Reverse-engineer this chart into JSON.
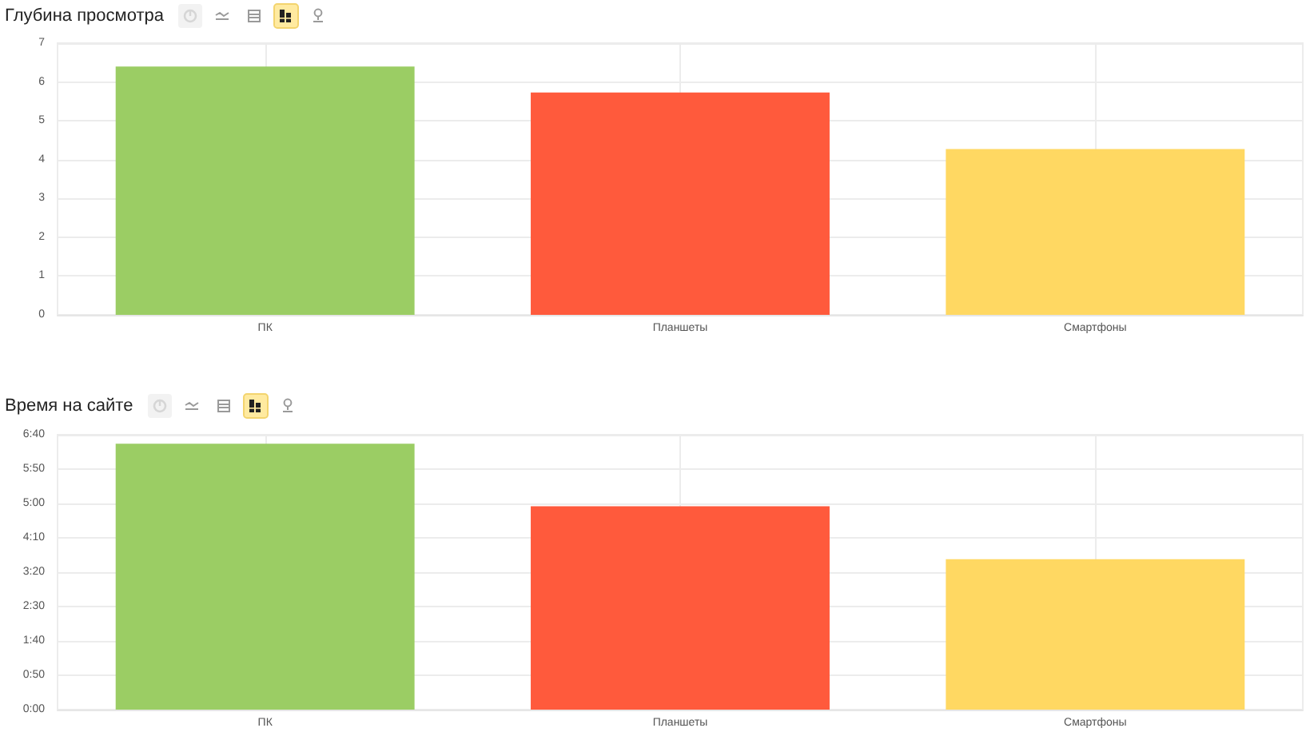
{
  "chart_data": [
    {
      "type": "bar",
      "title": "Глубина просмотра",
      "categories": [
        "ПК",
        "Планшеты",
        "Смартфоны"
      ],
      "values": [
        6.4,
        5.73,
        4.27
      ],
      "colors": [
        "#9bcd64",
        "#ff5a3c",
        "#ffd862"
      ],
      "ylim": [
        0,
        7
      ],
      "yticks": [
        0,
        1,
        2,
        3,
        4,
        5,
        6,
        7
      ],
      "grid": true
    },
    {
      "type": "bar",
      "title": "Время на сайте",
      "categories": [
        "ПК",
        "Планшеты",
        "Смартфоны"
      ],
      "values": [
        387,
        296,
        219
      ],
      "colors": [
        "#9bcd64",
        "#ff5a3c",
        "#ffd862"
      ],
      "ylim": [
        0,
        400
      ],
      "yticks": [
        {
          "value": 0,
          "label": "0:00"
        },
        {
          "value": 50,
          "label": "0:50"
        },
        {
          "value": 100,
          "label": "1:40"
        },
        {
          "value": 150,
          "label": "2:30"
        },
        {
          "value": 200,
          "label": "3:20"
        },
        {
          "value": 250,
          "label": "4:10"
        },
        {
          "value": 300,
          "label": "5:00"
        },
        {
          "value": 350,
          "label": "5:50"
        },
        {
          "value": 400,
          "label": "6:40"
        }
      ],
      "grid": true
    }
  ]
}
